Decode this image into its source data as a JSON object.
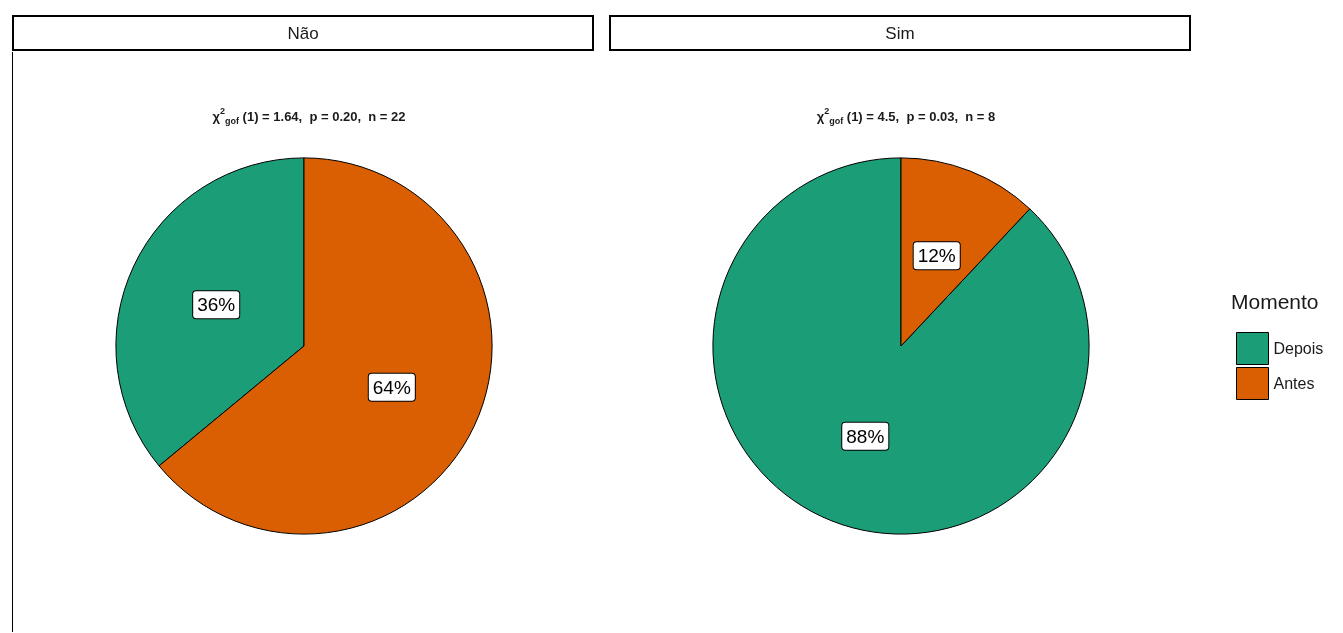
{
  "chart_data": [
    {
      "type": "pie",
      "title": "Não",
      "subtitle": "χ$^{2}$$_{gof}$ (1) = 1.64,  p = 0.20,  n = 22",
      "categories": [
        "Depois",
        "Antes"
      ],
      "values": [
        36,
        64
      ],
      "colors": [
        "#1b9e77",
        "#d95f02"
      ],
      "value_labels": [
        "36%",
        "64%"
      ],
      "legend": "right",
      "legend_title": "Momento"
    },
    {
      "type": "pie",
      "title": "Sim",
      "subtitle": "χ$^{2}$$_{gof}$ (1) = 4.5,  p = 0.03,  n = 8",
      "categories": [
        null,
        null
      ],
      "values": [
        88,
        12
      ],
      "colors": [
        "#1b9e77",
        "#d95f02"
      ],
      "value_labels": [
        "88%",
        "12%"
      ],
      "legend": false
    }
  ]
}
